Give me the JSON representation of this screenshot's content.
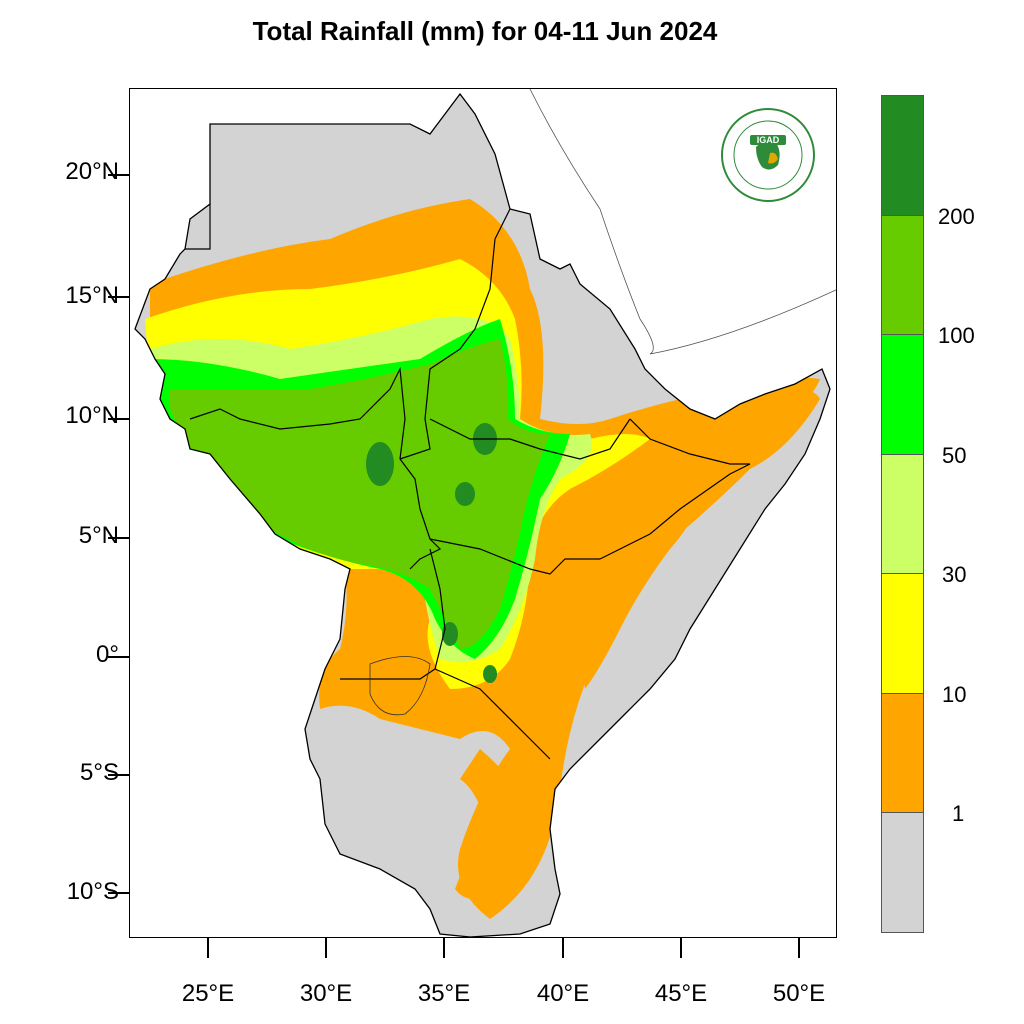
{
  "title": "Total Rainfall (mm) for 04-11 Jun 2024",
  "lat_labels": [
    "20°N",
    "15°N",
    "10°N",
    "5°N",
    "0°",
    "5°S",
    "10°S"
  ],
  "lon_labels": [
    "25°E",
    "30°E",
    "35°E",
    "40°E",
    "45°E",
    "50°E"
  ],
  "legend": {
    "labels": [
      "200",
      "100",
      "50",
      "30",
      "10",
      "1"
    ],
    "colors": [
      "#228B22",
      "#66CC00",
      "#00FF00",
      "#CCFF66",
      "#FFFF00",
      "#FFA500",
      "#D3D3D3"
    ]
  },
  "logo": {
    "text": "IGAD",
    "ring_text": "INTERGOVERNMENTAL AUTHORITY ON DEVELOPMENT"
  },
  "colors": {
    "land": "#D3D3D3",
    "frame": "#000000",
    "logo_green": "#2E8B3A",
    "logo_gold": "#E0A800"
  }
}
